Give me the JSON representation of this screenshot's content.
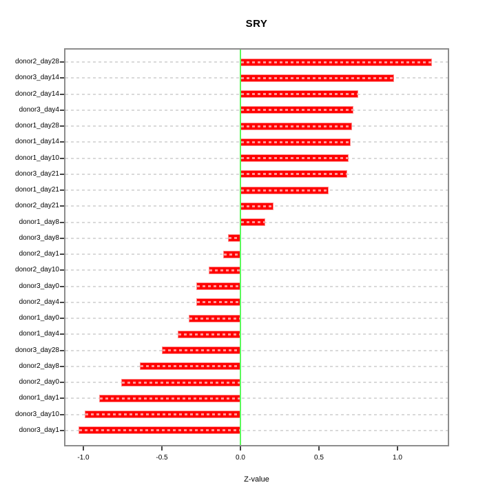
{
  "chart_data": {
    "type": "bar",
    "orientation": "horizontal",
    "title": "SRY",
    "xlabel": "Z-value",
    "categories": [
      "donor2_day28",
      "donor3_day14",
      "donor2_day14",
      "donor3_day4",
      "donor1_day28",
      "donor1_day14",
      "donor1_day10",
      "donor3_day21",
      "donor1_day21",
      "donor2_day21",
      "donor1_day8",
      "donor3_day8",
      "donor2_day1",
      "donor2_day10",
      "donor3_day0",
      "donor2_day4",
      "donor1_day0",
      "donor1_day4",
      "donor3_day28",
      "donor2_day8",
      "donor2_day0",
      "donor1_day1",
      "donor3_day10",
      "donor3_day1"
    ],
    "values": [
      1.22,
      0.98,
      0.75,
      0.72,
      0.71,
      0.7,
      0.69,
      0.68,
      0.56,
      0.21,
      0.16,
      -0.08,
      -0.11,
      -0.2,
      -0.28,
      -0.28,
      -0.33,
      -0.4,
      -0.5,
      -0.64,
      -0.76,
      -0.9,
      -0.99,
      -1.03
    ],
    "x_ticks": [
      -1.0,
      -0.5,
      0.0,
      0.5,
      1.0
    ],
    "x_tick_labels": [
      "-1.0",
      "-0.5",
      "0.0",
      "0.5",
      "1.0"
    ],
    "xlim": [
      -1.11,
      1.32
    ],
    "grid": true,
    "legend": false,
    "zero_line_at": 0.0,
    "colors": {
      "bar": "#ff0000",
      "bar_border": "#ff8c8c",
      "bar_dash": "rgba(255,255,255,0.6)",
      "grid": "#d9d9d9",
      "zero_line": "#5bf75b",
      "box_border": "#8c8c8c",
      "text": "#000000"
    }
  }
}
